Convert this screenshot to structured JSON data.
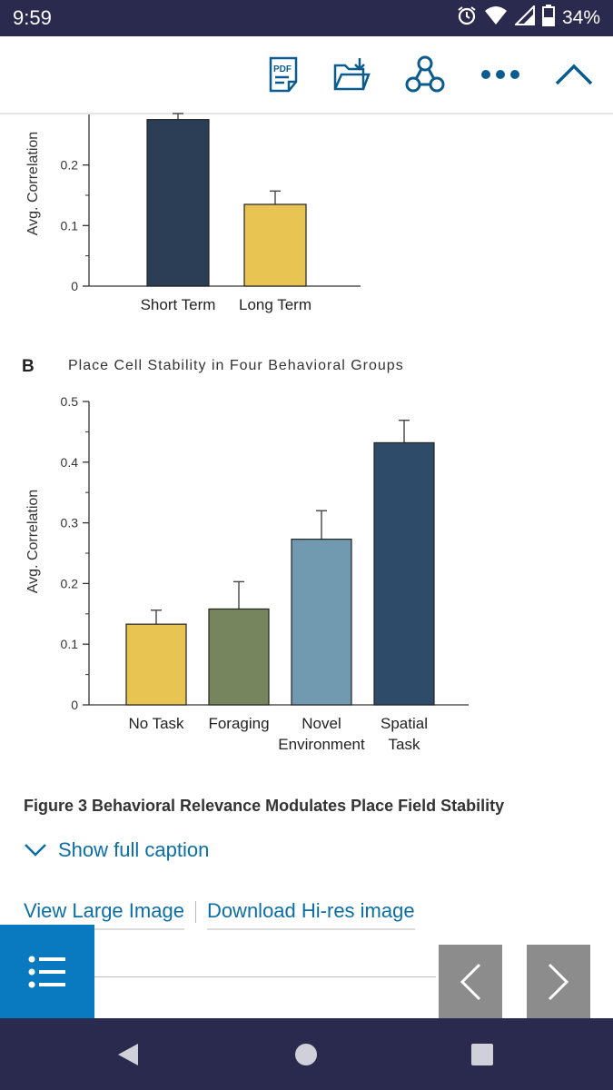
{
  "status_bar": {
    "time": "9:59",
    "battery": "34%",
    "icons": [
      "alarm-icon",
      "wifi-icon",
      "signal-icon",
      "battery-icon"
    ]
  },
  "toolbar": {
    "pdf_label": "PDF",
    "icons": [
      "pdf-icon",
      "folder-download-icon",
      "share-icon",
      "more-icon",
      "collapse-icon"
    ],
    "accent_color": "#0a5c8f"
  },
  "chart_data": [
    {
      "type": "bar",
      "title": "",
      "ylabel": "Avg. Correlation",
      "categories": [
        "Short Term",
        "Long Term"
      ],
      "values": [
        0.275,
        0.135
      ],
      "errors": [
        0.01,
        0.022
      ],
      "colors": [
        "#2c3e55",
        "#e8c453"
      ],
      "yticks": [
        0,
        0.1,
        0.2
      ],
      "ylim": [
        0,
        0.3
      ]
    },
    {
      "type": "bar",
      "panel_label": "B",
      "title": "Place Cell Stability in Four Behavioral Groups",
      "ylabel": "Avg. Correlation",
      "categories": [
        [
          "No Task"
        ],
        [
          "Foraging"
        ],
        [
          "Novel",
          "Environment"
        ],
        [
          "Spatial",
          "Task"
        ]
      ],
      "values": [
        0.133,
        0.158,
        0.273,
        0.432
      ],
      "errors": [
        0.023,
        0.045,
        0.047,
        0.037
      ],
      "colors": [
        "#e8c453",
        "#76855d",
        "#7199b0",
        "#2e4b6a"
      ],
      "yticks": [
        0,
        0.1,
        0.2,
        0.3,
        0.4,
        0.5
      ],
      "ylim": [
        0,
        0.5
      ]
    }
  ],
  "figure": {
    "caption_title": "Figure 3  Behavioral Relevance Modulates Place Field Stability",
    "show_caption": "Show full caption",
    "view_large": "View Large Image",
    "download_hires": "Download Hi-res image"
  },
  "bottom_bar": {
    "icons": [
      "toc-list-icon",
      "prev-chevron-icon",
      "next-chevron-icon"
    ],
    "toc_color": "#0a7ac0"
  },
  "system_nav": {
    "icons": [
      "back-icon",
      "home-icon",
      "recents-icon"
    ]
  }
}
